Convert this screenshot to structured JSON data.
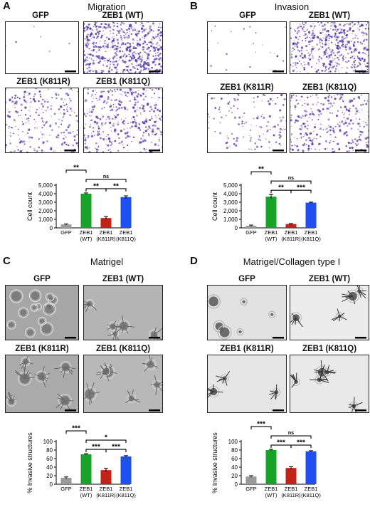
{
  "colors": {
    "gfp": "#9a9a9a",
    "wt": "#1aa32a",
    "k811r": "#c22318",
    "k811q": "#1f4ff0",
    "crystal_violet": "#5a3aa8",
    "spheroid": "#555555"
  },
  "panels": [
    {
      "letter": "A",
      "title": "Migration",
      "images": {
        "tl": "GFP",
        "tr": "ZEB1 (WT)",
        "bl": "ZEB1 (K811R)",
        "br": "ZEB1 (K811Q)"
      }
    },
    {
      "letter": "B",
      "title": "Invasion",
      "images": {
        "tl": "GFP",
        "tr": "ZEB1 (WT)",
        "bl": "ZEB1 (K811R)",
        "br": "ZEB1 (K811Q)"
      }
    },
    {
      "letter": "C",
      "title": "Matrigel",
      "images": {
        "tl": "GFP",
        "tr": "ZEB1 (WT)",
        "bl": "ZEB1 (K811R)",
        "br": "ZEB1 (K811Q)"
      }
    },
    {
      "letter": "D",
      "title": "Matrigel/Collagen type I",
      "images": {
        "tl": "GFP",
        "tr": "ZEB1 (WT)",
        "bl": "ZEB1 (K811R)",
        "br": "ZEB1 (K811Q)"
      }
    }
  ],
  "chart_data": [
    {
      "type": "bar",
      "panel": "A",
      "ylabel": "Cell count",
      "categories": [
        "GFP",
        "ZEB1 (WT)",
        "ZEB1 (K811R)",
        "ZEB1 (K811Q)"
      ],
      "tick_labels": [
        [
          "GFP"
        ],
        [
          "ZEB1",
          "(WT)"
        ],
        [
          "ZEB1",
          "(K811R)"
        ],
        [
          "ZEB1",
          "(K811Q)"
        ]
      ],
      "values": [
        400,
        4000,
        1150,
        3600
      ],
      "errors": [
        60,
        90,
        180,
        150
      ],
      "ylim": [
        0,
        5000
      ],
      "yticks": [
        "0",
        "1,000",
        "2,000",
        "3,000",
        "4,000",
        "5,000"
      ],
      "ytick_values": [
        0,
        1000,
        2000,
        3000,
        4000,
        5000
      ],
      "significance": [
        {
          "from": 0,
          "to": 1,
          "label": "**",
          "level": 3
        },
        {
          "from": 1,
          "to": 3,
          "label": "ns",
          "level": 2
        },
        {
          "from": 1,
          "to": 2,
          "label": "**",
          "level": 1
        },
        {
          "from": 2,
          "to": 3,
          "label": "**",
          "level": 1
        }
      ]
    },
    {
      "type": "bar",
      "panel": "B",
      "ylabel": "Cell count",
      "categories": [
        "GFP",
        "ZEB1 (WT)",
        "ZEB1 (K811R)",
        "ZEB1 (K811Q)"
      ],
      "tick_labels": [
        [
          "GFP"
        ],
        [
          "ZEB1",
          "(WT)"
        ],
        [
          "ZEB1",
          "(K811R)"
        ],
        [
          "ZEB1",
          "(K811Q)"
        ]
      ],
      "values": [
        250,
        3650,
        450,
        2950
      ],
      "errors": [
        80,
        250,
        50,
        60
      ],
      "ylim": [
        0,
        5000
      ],
      "yticks": [
        "0",
        "1,000",
        "2,000",
        "3,000",
        "4,000",
        "5,000"
      ],
      "ytick_values": [
        0,
        1000,
        2000,
        3000,
        4000,
        5000
      ],
      "significance": [
        {
          "from": 0,
          "to": 1,
          "label": "**",
          "level": 3
        },
        {
          "from": 1,
          "to": 3,
          "label": "ns",
          "level": 2
        },
        {
          "from": 1,
          "to": 2,
          "label": "**",
          "level": 1
        },
        {
          "from": 2,
          "to": 3,
          "label": "***",
          "level": 1
        }
      ]
    },
    {
      "type": "bar",
      "panel": "C",
      "ylabel": "% Invasive structures",
      "categories": [
        "GFP",
        "ZEB1 (WT)",
        "ZEB1 (K811R)",
        "ZEB1 (K811Q)"
      ],
      "tick_labels": [
        [
          "GFP"
        ],
        [
          "ZEB1",
          "(WT)"
        ],
        [
          "ZEB1",
          "(K811R)"
        ],
        [
          "ZEB1",
          "(K811Q)"
        ]
      ],
      "values": [
        15,
        70,
        33,
        65
      ],
      "errors": [
        2,
        1.5,
        4,
        2
      ],
      "ylim": [
        0,
        100
      ],
      "yticks": [
        "0",
        "20",
        "40",
        "60",
        "80",
        "100"
      ],
      "ytick_values": [
        0,
        20,
        40,
        60,
        80,
        100
      ],
      "significance": [
        {
          "from": 0,
          "to": 1,
          "label": "***",
          "level": 3
        },
        {
          "from": 1,
          "to": 3,
          "label": "*",
          "level": 2
        },
        {
          "from": 1,
          "to": 2,
          "label": "***",
          "level": 1
        },
        {
          "from": 2,
          "to": 3,
          "label": "***",
          "level": 1
        }
      ]
    },
    {
      "type": "bar",
      "panel": "D",
      "ylabel": "% Invasive structures",
      "categories": [
        "GFP",
        "ZEB1 (WT)",
        "ZEB1 (K811R)",
        "ZEB1 (K811Q)"
      ],
      "tick_labels": [
        [
          "GFP"
        ],
        [
          "ZEB1",
          "(WT)"
        ],
        [
          "ZEB1",
          "(K811R)"
        ],
        [
          "ZEB1",
          "(K811Q)"
        ]
      ],
      "values": [
        18,
        80,
        38,
        77
      ],
      "errors": [
        2,
        1.5,
        3,
        1.5
      ],
      "ylim": [
        0,
        100
      ],
      "yticks": [
        "0",
        "20",
        "40",
        "60",
        "80",
        "100"
      ],
      "ytick_values": [
        0,
        20,
        40,
        60,
        80,
        100
      ],
      "significance": [
        {
          "from": 0,
          "to": 1,
          "label": "***",
          "level": 3
        },
        {
          "from": 1,
          "to": 3,
          "label": "ns",
          "level": 2
        },
        {
          "from": 1,
          "to": 2,
          "label": "***",
          "level": 1
        },
        {
          "from": 2,
          "to": 3,
          "label": "***",
          "level": 1
        }
      ]
    }
  ]
}
